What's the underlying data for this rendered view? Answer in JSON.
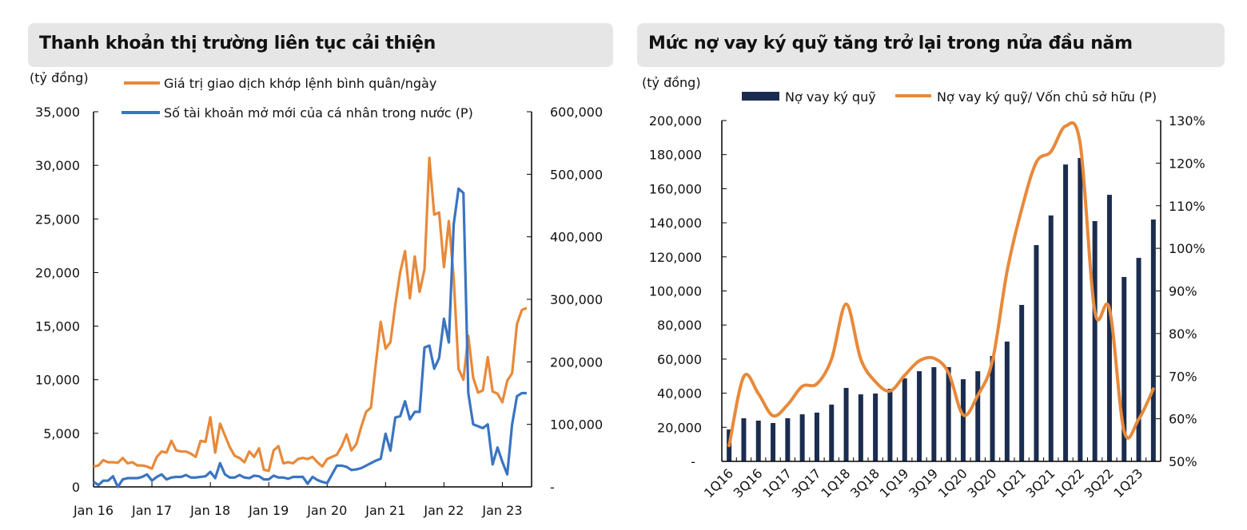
{
  "colors": {
    "orange": "#e8893a",
    "blue": "#3a74c2",
    "navy": "#1b2d4f",
    "title_bg": "#e6e6e6"
  },
  "chart_data": [
    {
      "type": "line",
      "title": "Thanh khoản thị trường liên tục cải thiện",
      "unit_label": "(tỷ đồng)",
      "x_ticks": [
        "Jan 16",
        "Jan 17",
        "Jan 18",
        "Jan 19",
        "Jan 20",
        "Jan 21",
        "Jan 22",
        "Jan 23"
      ],
      "x_range": [
        "2016-01",
        "2023-07"
      ],
      "y_left": {
        "ticks": [
          "-0",
          "5,000",
          "10,000",
          "15,000",
          "20,000",
          "25,000",
          "30,000",
          "35,000"
        ],
        "range": [
          0,
          35000
        ]
      },
      "y_right": {
        "ticks": [
          "-",
          "100,000",
          "200,000",
          "300,000",
          "400,000",
          "500,000",
          "600,000"
        ],
        "range": [
          0,
          600000
        ]
      },
      "grid": false,
      "legend": "top",
      "series": [
        {
          "name": "Giá trị giao dịch khớp lệnh bình quân/ngày",
          "axis": "left",
          "color": "#e8893a",
          "values": [
            1900,
            2000,
            2500,
            2300,
            2300,
            2250,
            2700,
            2200,
            2300,
            2000,
            2000,
            1900,
            1700,
            2800,
            3300,
            3200,
            4300,
            3400,
            3300,
            3300,
            3100,
            2800,
            4300,
            4200,
            6500,
            3200,
            5900,
            4800,
            3700,
            2900,
            2700,
            2300,
            3300,
            2800,
            3600,
            1600,
            1500,
            3400,
            3800,
            2200,
            2300,
            2200,
            2600,
            2700,
            2600,
            2800,
            2300,
            1900,
            2600,
            2800,
            3000,
            3800,
            4900,
            3400,
            4000,
            5600,
            7000,
            7400,
            11500,
            15400,
            12900,
            13500,
            17000,
            20000,
            22000,
            17600,
            21500,
            18200,
            20300,
            30700,
            25400,
            25600,
            20500,
            24800,
            19500,
            11000,
            10000,
            14100,
            10200,
            8800,
            9000,
            12100,
            8900,
            8700,
            7900,
            9900,
            10600,
            15200,
            16500,
            16700
          ]
        },
        {
          "name": "Số tài khoản mở mới của cá nhân trong nước (P)",
          "axis": "right",
          "color": "#3a74c2",
          "values": [
            8000,
            3000,
            10000,
            10000,
            17000,
            0,
            12000,
            14000,
            14000,
            14000,
            16000,
            20000,
            10000,
            16000,
            20000,
            12000,
            15000,
            16000,
            16000,
            19000,
            15000,
            15000,
            16000,
            17000,
            24000,
            14000,
            38000,
            20000,
            15000,
            15000,
            19000,
            15000,
            14000,
            18000,
            17000,
            12000,
            12000,
            18000,
            15000,
            15000,
            13000,
            16000,
            16000,
            16000,
            5000,
            16000,
            11000,
            8000,
            6000,
            20000,
            34000,
            34000,
            32000,
            27000,
            28000,
            30000,
            34000,
            38000,
            42000,
            45000,
            85000,
            58000,
            111000,
            113000,
            137000,
            108000,
            120000,
            120000,
            223000,
            226000,
            189000,
            206000,
            269000,
            231000,
            420000,
            477000,
            470000,
            150000,
            100000,
            97000,
            94000,
            100000,
            36000,
            63000,
            40000,
            20000,
            100000,
            145000,
            150000,
            150000
          ]
        }
      ]
    },
    {
      "type": "bar+line",
      "title": "Mức nợ vay ký quỹ tăng trở lại trong nửa đầu năm",
      "unit_label": "(tỷ đồng)",
      "categories": [
        "1Q16",
        "2Q16",
        "3Q16",
        "4Q16",
        "1Q17",
        "2Q17",
        "3Q17",
        "4Q17",
        "1Q18",
        "2Q18",
        "3Q18",
        "4Q18",
        "1Q19",
        "2Q19",
        "3Q19",
        "4Q19",
        "1Q20",
        "2Q20",
        "3Q20",
        "4Q20",
        "1Q21",
        "2Q21",
        "3Q21",
        "4Q21",
        "1Q22",
        "2Q22",
        "3Q22",
        "4Q22",
        "1Q23",
        "2Q23"
      ],
      "x_tick_labels": [
        "1Q16",
        "3Q16",
        "1Q17",
        "3Q17",
        "1Q18",
        "3Q18",
        "1Q19",
        "3Q19",
        "1Q20",
        "3Q20",
        "1Q21",
        "3Q21",
        "1Q22",
        "3Q22",
        "1Q23"
      ],
      "y_left": {
        "ticks": [
          "-",
          "20,000",
          "40,000",
          "60,000",
          "80,000",
          "100,000",
          "120,000",
          "140,000",
          "160,000",
          "180,000",
          "200,000"
        ],
        "range": [
          0,
          200000
        ]
      },
      "y_right": {
        "ticks": [
          "50%",
          "60%",
          "70%",
          "80%",
          "90%",
          "100%",
          "110%",
          "120%",
          "130%"
        ],
        "range": [
          50,
          130
        ]
      },
      "grid": false,
      "legend": "top",
      "series": [
        {
          "name": "Nợ vay ký quỹ",
          "kind": "bar",
          "axis": "left",
          "color": "#1b2d4f",
          "values": [
            18700,
            25300,
            23900,
            22500,
            25300,
            27600,
            28600,
            33300,
            43100,
            39300,
            39800,
            42600,
            48700,
            52900,
            55300,
            55300,
            48200,
            52900,
            61800,
            70300,
            91800,
            126900,
            144300,
            174200,
            178000,
            141000,
            156400,
            108200,
            119400,
            141900
          ]
        },
        {
          "name": "Nợ vay ký quỹ/ Vốn chủ sở hữu (P)",
          "kind": "line",
          "axis": "right",
          "color": "#e8893a",
          "values": [
            53.7,
            69.9,
            65.9,
            60.7,
            63.3,
            67.6,
            68.2,
            74.0,
            86.9,
            74.0,
            68.7,
            66.5,
            70.2,
            73.6,
            74.2,
            70.8,
            60.9,
            65.5,
            73.6,
            94.6,
            109.2,
            120.2,
            122.7,
            128.7,
            124.5,
            85.2,
            85.8,
            57.1,
            59.9,
            67.0
          ]
        }
      ]
    }
  ]
}
